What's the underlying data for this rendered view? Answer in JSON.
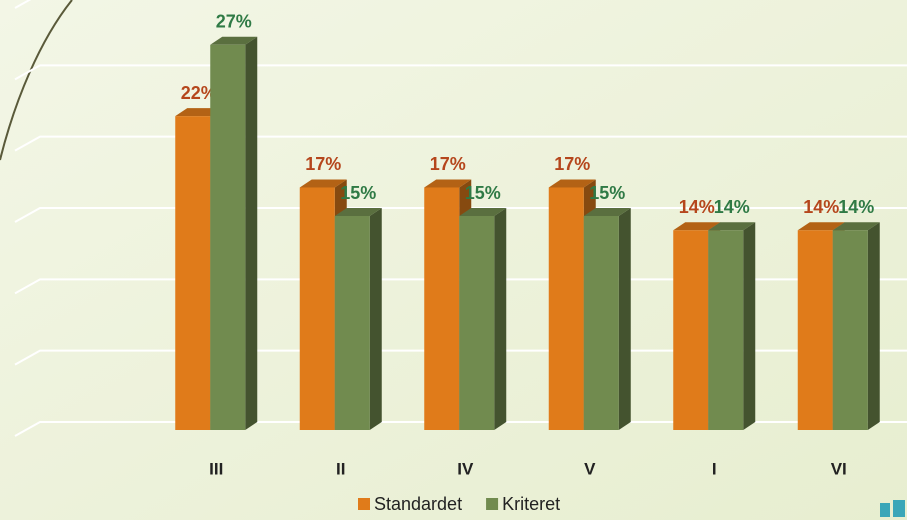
{
  "chart_data": {
    "type": "bar3d",
    "categories": [
      "III",
      "II",
      "IV",
      "V",
      "I",
      "VI"
    ],
    "series": [
      {
        "name": "Standardet",
        "color": "#e07b1a",
        "values": [
          22,
          17,
          17,
          17,
          14,
          14
        ],
        "value_labels": [
          "22%",
          "17%",
          "17%",
          "17%",
          "14%",
          "14%"
        ],
        "label_color": "#b5461c"
      },
      {
        "name": "Kriteret",
        "color": "#718b4f",
        "values": [
          27,
          15,
          15,
          15,
          14,
          14
        ],
        "value_labels": [
          "27%",
          "15%",
          "15%",
          "15%",
          "14%",
          "14%"
        ],
        "label_color": "#2f7a45"
      }
    ],
    "ylim": [
      0,
      30
    ],
    "yticks": [
      0,
      5,
      10,
      15,
      20,
      25,
      30
    ],
    "grid": true,
    "legend": "bottom"
  }
}
